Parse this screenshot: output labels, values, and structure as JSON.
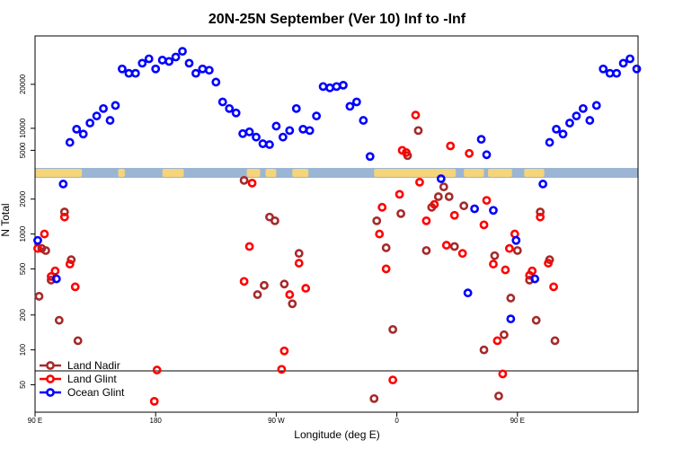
{
  "chart_data": {
    "type": "scatter",
    "title": "20N-25N September (Ver 10)   Inf to -Inf",
    "xlabel": "Longitude (deg E)",
    "ylabel": "N Total",
    "x_ticks": [
      {
        "value": 90,
        "label": "90 E"
      },
      {
        "value": 180,
        "label": "180"
      },
      {
        "value": 270,
        "label": "90 W"
      },
      {
        "value": 360,
        "label": "0"
      },
      {
        "value": 450,
        "label": "90 E"
      }
    ],
    "xlim": [
      90,
      540
    ],
    "upper_panel": {
      "scale": "linear",
      "ylim": [
        1000,
        31000
      ],
      "y_ticks": [
        {
          "value": 5000,
          "label": "5000"
        },
        {
          "value": 10000,
          "label": "10000"
        },
        {
          "value": 20000,
          "label": "20000"
        }
      ]
    },
    "lower_panel": {
      "scale": "log",
      "ylim": [
        29,
        3000
      ],
      "y_ticks": [
        {
          "value": 50,
          "label": "50"
        },
        {
          "value": 100,
          "label": "100"
        },
        {
          "value": 200,
          "label": "200"
        },
        {
          "value": 500,
          "label": "500"
        },
        {
          "value": 1000,
          "label": "1000"
        },
        {
          "value": 2000,
          "label": "2000"
        }
      ]
    },
    "series": [
      {
        "name": "Land Nadir",
        "color": "#a52a2a",
        "points": [
          {
            "x": 93,
            "y": 290,
            "panel": "lower"
          },
          {
            "x": 95,
            "y": 750,
            "panel": "lower"
          },
          {
            "x": 98,
            "y": 720,
            "panel": "lower"
          },
          {
            "x": 102,
            "y": 400,
            "panel": "lower"
          },
          {
            "x": 108,
            "y": 180,
            "panel": "lower"
          },
          {
            "x": 112,
            "y": 1550,
            "panel": "lower"
          },
          {
            "x": 117,
            "y": 600,
            "panel": "lower"
          },
          {
            "x": 122,
            "y": 120,
            "panel": "lower"
          },
          {
            "x": 246,
            "y": 2900,
            "panel": "lower"
          },
          {
            "x": 256,
            "y": 300,
            "panel": "lower"
          },
          {
            "x": 261,
            "y": 360,
            "panel": "lower"
          },
          {
            "x": 265,
            "y": 1400,
            "panel": "lower"
          },
          {
            "x": 269,
            "y": 1300,
            "panel": "lower"
          },
          {
            "x": 276,
            "y": 370,
            "panel": "lower"
          },
          {
            "x": 282,
            "y": 250,
            "panel": "lower"
          },
          {
            "x": 287,
            "y": 680,
            "panel": "lower"
          },
          {
            "x": 343,
            "y": 38,
            "panel": "lower"
          },
          {
            "x": 345,
            "y": 1300,
            "panel": "lower"
          },
          {
            "x": 352,
            "y": 760,
            "panel": "lower"
          },
          {
            "x": 357,
            "y": 150,
            "panel": "lower"
          },
          {
            "x": 363,
            "y": 1500,
            "panel": "lower"
          },
          {
            "x": 368,
            "y": 3800,
            "panel": "upper"
          },
          {
            "x": 376,
            "y": 9500,
            "panel": "upper"
          },
          {
            "x": 382,
            "y": 720,
            "panel": "lower"
          },
          {
            "x": 386,
            "y": 1700,
            "panel": "lower"
          },
          {
            "x": 391,
            "y": 2100,
            "panel": "lower"
          },
          {
            "x": 395,
            "y": 2550,
            "panel": "lower"
          },
          {
            "x": 399,
            "y": 2100,
            "panel": "lower"
          },
          {
            "x": 403,
            "y": 780,
            "panel": "lower"
          },
          {
            "x": 410,
            "y": 1750,
            "panel": "lower"
          },
          {
            "x": 425,
            "y": 100,
            "panel": "lower"
          },
          {
            "x": 433,
            "y": 650,
            "panel": "lower"
          },
          {
            "x": 436,
            "y": 40,
            "panel": "lower"
          },
          {
            "x": 440,
            "y": 135,
            "panel": "lower"
          },
          {
            "x": 445,
            "y": 280,
            "panel": "lower"
          },
          {
            "x": 450,
            "y": 720,
            "panel": "lower"
          },
          {
            "x": 459,
            "y": 400,
            "panel": "lower"
          },
          {
            "x": 464,
            "y": 180,
            "panel": "lower"
          },
          {
            "x": 467,
            "y": 1550,
            "panel": "lower"
          },
          {
            "x": 474,
            "y": 600,
            "panel": "lower"
          },
          {
            "x": 478,
            "y": 120,
            "panel": "lower"
          }
        ]
      },
      {
        "name": "Land Glint",
        "color": "#ff0000",
        "points": [
          {
            "x": 92,
            "y": 750,
            "panel": "lower"
          },
          {
            "x": 97,
            "y": 1000,
            "panel": "lower"
          },
          {
            "x": 102,
            "y": 430,
            "panel": "lower"
          },
          {
            "x": 105,
            "y": 480,
            "panel": "lower"
          },
          {
            "x": 112,
            "y": 1400,
            "panel": "lower"
          },
          {
            "x": 116,
            "y": 550,
            "panel": "lower"
          },
          {
            "x": 120,
            "y": 350,
            "panel": "lower"
          },
          {
            "x": 179,
            "y": 36,
            "panel": "lower"
          },
          {
            "x": 181,
            "y": 67,
            "panel": "lower"
          },
          {
            "x": 246,
            "y": 390,
            "panel": "lower"
          },
          {
            "x": 250,
            "y": 780,
            "panel": "lower"
          },
          {
            "x": 252,
            "y": 2750,
            "panel": "lower"
          },
          {
            "x": 274,
            "y": 68,
            "panel": "lower"
          },
          {
            "x": 276,
            "y": 98,
            "panel": "lower"
          },
          {
            "x": 280,
            "y": 300,
            "panel": "lower"
          },
          {
            "x": 287,
            "y": 560,
            "panel": "lower"
          },
          {
            "x": 292,
            "y": 340,
            "panel": "lower"
          },
          {
            "x": 347,
            "y": 1000,
            "panel": "lower"
          },
          {
            "x": 349,
            "y": 1700,
            "panel": "lower"
          },
          {
            "x": 352,
            "y": 500,
            "panel": "lower"
          },
          {
            "x": 357,
            "y": 55,
            "panel": "lower"
          },
          {
            "x": 362,
            "y": 2200,
            "panel": "lower"
          },
          {
            "x": 364,
            "y": 5000,
            "panel": "upper"
          },
          {
            "x": 367,
            "y": 4500,
            "panel": "upper"
          },
          {
            "x": 374,
            "y": 13000,
            "panel": "upper"
          },
          {
            "x": 377,
            "y": 2800,
            "panel": "lower"
          },
          {
            "x": 382,
            "y": 1300,
            "panel": "lower"
          },
          {
            "x": 388,
            "y": 1800,
            "panel": "lower"
          },
          {
            "x": 397,
            "y": 800,
            "panel": "lower"
          },
          {
            "x": 400,
            "y": 6000,
            "panel": "upper"
          },
          {
            "x": 403,
            "y": 1450,
            "panel": "lower"
          },
          {
            "x": 409,
            "y": 680,
            "panel": "lower"
          },
          {
            "x": 414,
            "y": 4300,
            "panel": "upper"
          },
          {
            "x": 425,
            "y": 1200,
            "panel": "lower"
          },
          {
            "x": 427,
            "y": 1950,
            "panel": "lower"
          },
          {
            "x": 432,
            "y": 550,
            "panel": "lower"
          },
          {
            "x": 435,
            "y": 120,
            "panel": "lower"
          },
          {
            "x": 439,
            "y": 62,
            "panel": "lower"
          },
          {
            "x": 441,
            "y": 490,
            "panel": "lower"
          },
          {
            "x": 444,
            "y": 750,
            "panel": "lower"
          },
          {
            "x": 448,
            "y": 1000,
            "panel": "lower"
          },
          {
            "x": 459,
            "y": 440,
            "panel": "lower"
          },
          {
            "x": 461,
            "y": 480,
            "panel": "lower"
          },
          {
            "x": 467,
            "y": 1400,
            "panel": "lower"
          },
          {
            "x": 473,
            "y": 560,
            "panel": "lower"
          },
          {
            "x": 477,
            "y": 350,
            "panel": "lower"
          }
        ]
      },
      {
        "name": "Ocean Glint",
        "color": "#0000ff",
        "points": [
          {
            "x": 92,
            "y": 880,
            "panel": "lower"
          },
          {
            "x": 106,
            "y": 410,
            "panel": "lower"
          },
          {
            "x": 111,
            "y": 2700,
            "panel": "lower"
          },
          {
            "x": 116,
            "y": 6800,
            "panel": "upper"
          },
          {
            "x": 121,
            "y": 9800,
            "panel": "upper"
          },
          {
            "x": 126,
            "y": 8700,
            "panel": "upper"
          },
          {
            "x": 131,
            "y": 11200,
            "panel": "upper"
          },
          {
            "x": 136,
            "y": 12800,
            "panel": "upper"
          },
          {
            "x": 141,
            "y": 14500,
            "panel": "upper"
          },
          {
            "x": 146,
            "y": 11800,
            "panel": "upper"
          },
          {
            "x": 150,
            "y": 15200,
            "panel": "upper"
          },
          {
            "x": 155,
            "y": 23500,
            "panel": "upper"
          },
          {
            "x": 160,
            "y": 22500,
            "panel": "upper"
          },
          {
            "x": 165,
            "y": 22500,
            "panel": "upper"
          },
          {
            "x": 170,
            "y": 24800,
            "panel": "upper"
          },
          {
            "x": 175,
            "y": 25800,
            "panel": "upper"
          },
          {
            "x": 180,
            "y": 23500,
            "panel": "upper"
          },
          {
            "x": 185,
            "y": 25500,
            "panel": "upper"
          },
          {
            "x": 190,
            "y": 25200,
            "panel": "upper"
          },
          {
            "x": 195,
            "y": 26200,
            "panel": "upper"
          },
          {
            "x": 200,
            "y": 27500,
            "panel": "upper"
          },
          {
            "x": 205,
            "y": 24800,
            "panel": "upper"
          },
          {
            "x": 210,
            "y": 22500,
            "panel": "upper"
          },
          {
            "x": 215,
            "y": 23500,
            "panel": "upper"
          },
          {
            "x": 220,
            "y": 23200,
            "panel": "upper"
          },
          {
            "x": 225,
            "y": 20500,
            "panel": "upper"
          },
          {
            "x": 230,
            "y": 16000,
            "panel": "upper"
          },
          {
            "x": 235,
            "y": 14500,
            "panel": "upper"
          },
          {
            "x": 240,
            "y": 13500,
            "panel": "upper"
          },
          {
            "x": 245,
            "y": 8800,
            "panel": "upper"
          },
          {
            "x": 250,
            "y": 9200,
            "panel": "upper"
          },
          {
            "x": 255,
            "y": 8000,
            "panel": "upper"
          },
          {
            "x": 260,
            "y": 6500,
            "panel": "upper"
          },
          {
            "x": 265,
            "y": 6300,
            "panel": "upper"
          },
          {
            "x": 270,
            "y": 10500,
            "panel": "upper"
          },
          {
            "x": 275,
            "y": 8000,
            "panel": "upper"
          },
          {
            "x": 280,
            "y": 9500,
            "panel": "upper"
          },
          {
            "x": 285,
            "y": 14500,
            "panel": "upper"
          },
          {
            "x": 290,
            "y": 9800,
            "panel": "upper"
          },
          {
            "x": 295,
            "y": 9500,
            "panel": "upper"
          },
          {
            "x": 300,
            "y": 12800,
            "panel": "upper"
          },
          {
            "x": 305,
            "y": 19500,
            "panel": "upper"
          },
          {
            "x": 310,
            "y": 19200,
            "panel": "upper"
          },
          {
            "x": 315,
            "y": 19500,
            "panel": "upper"
          },
          {
            "x": 320,
            "y": 19800,
            "panel": "upper"
          },
          {
            "x": 325,
            "y": 15000,
            "panel": "upper"
          },
          {
            "x": 330,
            "y": 16000,
            "panel": "upper"
          },
          {
            "x": 335,
            "y": 11800,
            "panel": "upper"
          },
          {
            "x": 340,
            "y": 3600,
            "panel": "upper"
          },
          {
            "x": 393,
            "y": 3000,
            "panel": "lower"
          },
          {
            "x": 413,
            "y": 310,
            "panel": "lower"
          },
          {
            "x": 418,
            "y": 1650,
            "panel": "lower"
          },
          {
            "x": 423,
            "y": 7500,
            "panel": "upper"
          },
          {
            "x": 427,
            "y": 4000,
            "panel": "upper"
          },
          {
            "x": 432,
            "y": 1600,
            "panel": "lower"
          },
          {
            "x": 445,
            "y": 185,
            "panel": "lower"
          },
          {
            "x": 449,
            "y": 880,
            "panel": "lower"
          },
          {
            "x": 463,
            "y": 410,
            "panel": "lower"
          },
          {
            "x": 469,
            "y": 2700,
            "panel": "lower"
          },
          {
            "x": 474,
            "y": 6800,
            "panel": "upper"
          },
          {
            "x": 479,
            "y": 9800,
            "panel": "upper"
          },
          {
            "x": 484,
            "y": 8700,
            "panel": "upper"
          },
          {
            "x": 489,
            "y": 11200,
            "panel": "upper"
          },
          {
            "x": 494,
            "y": 12800,
            "panel": "upper"
          },
          {
            "x": 499,
            "y": 14500,
            "panel": "upper"
          },
          {
            "x": 504,
            "y": 11800,
            "panel": "upper"
          },
          {
            "x": 509,
            "y": 15200,
            "panel": "upper"
          },
          {
            "x": 514,
            "y": 23500,
            "panel": "upper"
          },
          {
            "x": 519,
            "y": 22500,
            "panel": "upper"
          },
          {
            "x": 524,
            "y": 22500,
            "panel": "upper"
          },
          {
            "x": 529,
            "y": 24800,
            "panel": "upper"
          },
          {
            "x": 534,
            "y": 25800,
            "panel": "upper"
          },
          {
            "x": 539,
            "y": 23500,
            "panel": "upper"
          }
        ]
      }
    ],
    "legend": {
      "position": "bottom-left",
      "entries": [
        {
          "label": "Land Nadir",
          "color": "#a52a2a"
        },
        {
          "label": "Land Glint",
          "color": "#ff0000"
        },
        {
          "label": "Ocean Glint",
          "color": "#0000ff"
        }
      ]
    },
    "map_band": {
      "description_colors": {
        "ocean": "#9bb5d4",
        "land": "#f5d47a"
      },
      "land_segments": [
        [
          90,
          125
        ],
        [
          152,
          157
        ],
        [
          185,
          201
        ],
        [
          248,
          258
        ],
        [
          262,
          270
        ],
        [
          282,
          294
        ],
        [
          343,
          404
        ],
        [
          410,
          425
        ],
        [
          428,
          446
        ],
        [
          455,
          470
        ]
      ]
    }
  }
}
